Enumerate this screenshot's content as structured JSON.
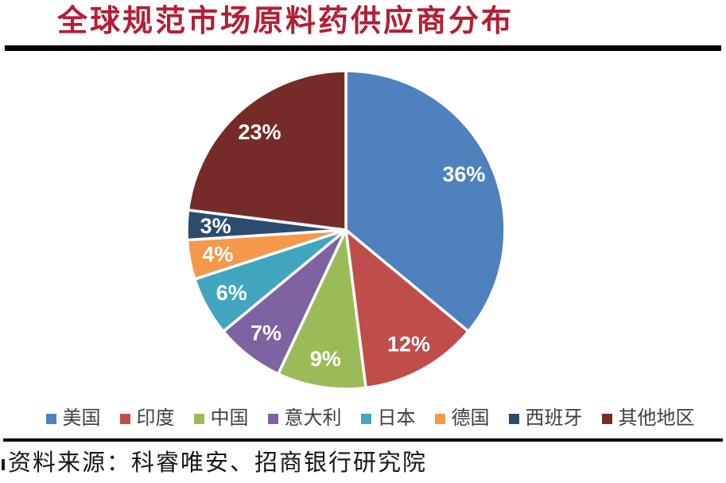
{
  "page": {
    "title": "全球规范市场原料药供应商分布",
    "source_note": "资料来源：科睿唯安、招商银行研究院"
  },
  "colors": {
    "title_text": "#B41E33",
    "rule": "#000000",
    "legend_text": "#404040",
    "slice_label_text": "#FFFFFF",
    "source_text": "#151515",
    "background": "#FFFFFF"
  },
  "chart_data": {
    "type": "pie",
    "title": "全球规范市场原料药供应商分布",
    "categories": [
      "美国",
      "印度",
      "中国",
      "意大利",
      "日本",
      "德国",
      "西班牙",
      "其他地区"
    ],
    "values": [
      36,
      12,
      9,
      7,
      6,
      4,
      3,
      23
    ],
    "labels": [
      "36%",
      "12%",
      "9%",
      "7%",
      "6%",
      "4%",
      "3%",
      "23%"
    ],
    "colors": [
      "#4E81BD",
      "#BF4E4B",
      "#9BBB59",
      "#7E62A1",
      "#41A5BF",
      "#F5984C",
      "#2B4B6F",
      "#752B28"
    ],
    "unit": "%",
    "start_angle_deg": 0,
    "direction": "clockwise",
    "legend_position": "bottom",
    "slice_border_color": "#FFFFFF",
    "label_radius_fraction": 0.82
  }
}
